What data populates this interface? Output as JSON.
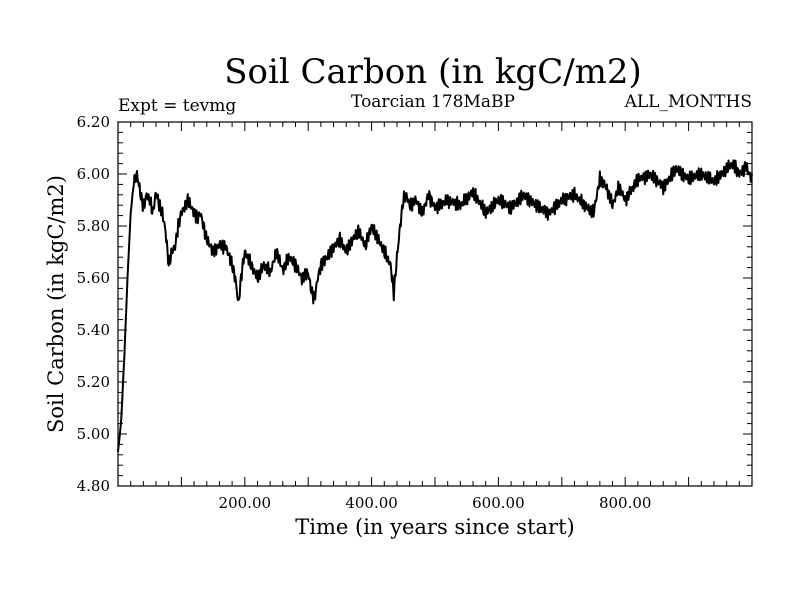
{
  "chart_data": {
    "type": "line",
    "title": "Soil Carbon (in kgC/m2)",
    "subtitle_left": "Expt = tevmg",
    "subtitle_center": "Toarcian 178MaBP",
    "subtitle_right": "ALL_MONTHS",
    "xlabel": "Time (in years since start)",
    "ylabel": "Soil Carbon (in kgC/m2)",
    "xlim": [
      0,
      1000
    ],
    "ylim": [
      4.8,
      6.2
    ],
    "x_ticks": [
      200,
      400,
      600,
      800
    ],
    "x_tick_labels": [
      "200.00",
      "400.00",
      "600.00",
      "800.00"
    ],
    "y_ticks": [
      4.8,
      5.0,
      5.2,
      5.4,
      5.6,
      5.8,
      6.0,
      6.2
    ],
    "y_tick_labels": [
      "4.80",
      "5.00",
      "5.20",
      "5.40",
      "5.60",
      "5.80",
      "6.00",
      "6.20"
    ],
    "series": [
      {
        "name": "Soil Carbon",
        "color": "#000000",
        "x": [
          0,
          5,
          10,
          15,
          20,
          25,
          30,
          35,
          40,
          45,
          50,
          55,
          60,
          65,
          70,
          75,
          80,
          85,
          90,
          95,
          100,
          110,
          120,
          125,
          130,
          140,
          150,
          160,
          170,
          180,
          185,
          190,
          195,
          200,
          210,
          220,
          230,
          240,
          250,
          260,
          270,
          280,
          290,
          300,
          305,
          310,
          315,
          320,
          330,
          340,
          350,
          360,
          370,
          380,
          390,
          400,
          410,
          420,
          430,
          435,
          440,
          445,
          450,
          455,
          460,
          470,
          480,
          490,
          500,
          520,
          540,
          560,
          580,
          600,
          620,
          640,
          660,
          680,
          700,
          720,
          740,
          750,
          760,
          770,
          780,
          790,
          800,
          820,
          840,
          860,
          880,
          900,
          920,
          940,
          960,
          970,
          980,
          990,
          1000
        ],
        "values": [
          4.93,
          5.05,
          5.3,
          5.6,
          5.85,
          5.97,
          6.0,
          5.93,
          5.87,
          5.92,
          5.9,
          5.85,
          5.93,
          5.88,
          5.85,
          5.78,
          5.65,
          5.7,
          5.72,
          5.8,
          5.85,
          5.9,
          5.85,
          5.83,
          5.85,
          5.75,
          5.7,
          5.73,
          5.72,
          5.65,
          5.6,
          5.5,
          5.62,
          5.7,
          5.65,
          5.6,
          5.65,
          5.62,
          5.7,
          5.63,
          5.68,
          5.65,
          5.6,
          5.62,
          5.55,
          5.52,
          5.6,
          5.65,
          5.68,
          5.72,
          5.75,
          5.7,
          5.75,
          5.78,
          5.72,
          5.8,
          5.75,
          5.7,
          5.65,
          5.54,
          5.68,
          5.8,
          5.9,
          5.92,
          5.88,
          5.9,
          5.85,
          5.92,
          5.87,
          5.9,
          5.88,
          5.93,
          5.85,
          5.9,
          5.87,
          5.92,
          5.88,
          5.85,
          5.9,
          5.92,
          5.87,
          5.85,
          5.98,
          5.95,
          5.88,
          5.95,
          5.9,
          5.98,
          6.0,
          5.95,
          6.02,
          5.98,
          6.0,
          5.97,
          6.02,
          6.04,
          6.0,
          6.03,
          5.98
        ]
      }
    ]
  }
}
